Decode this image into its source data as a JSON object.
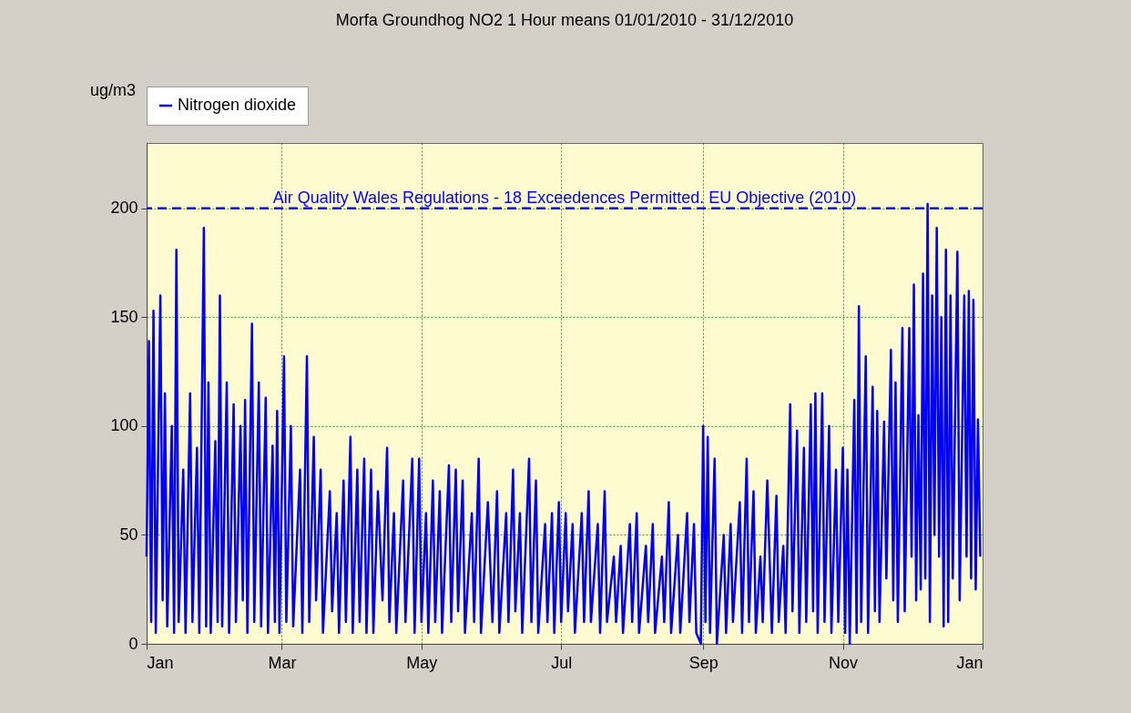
{
  "chart_data": {
    "type": "line",
    "title": "Morfa Groundhog NO2 1 Hour means     01/01/2010 - 31/12/2010",
    "ylabel": "ug/m3",
    "xlim": [
      "2010-01-01",
      "2011-01-01"
    ],
    "xticks": [
      {
        "value": "2010-01-01",
        "label": "Jan"
      },
      {
        "value": "2010-03-01",
        "label": "Mar"
      },
      {
        "value": "2010-05-01",
        "label": "May"
      },
      {
        "value": "2010-07-01",
        "label": "Jul"
      },
      {
        "value": "2010-09-01",
        "label": "Sep"
      },
      {
        "value": "2010-11-01",
        "label": "Nov"
      },
      {
        "value": "2011-01-01",
        "label": "Jan"
      }
    ],
    "ylim": [
      0,
      230
    ],
    "yticks": [
      0,
      50,
      100,
      150,
      200
    ],
    "grid": true,
    "legend": "top left",
    "line_style": "solid",
    "x": [
      "2010-01-01",
      "2010-01-02",
      "2010-01-03",
      "2010-01-04",
      "2010-01-05",
      "2010-01-07",
      "2010-01-08",
      "2010-01-09",
      "2010-01-10",
      "2010-01-12",
      "2010-01-13",
      "2010-01-14",
      "2010-01-15",
      "2010-01-17",
      "2010-01-18",
      "2010-01-20",
      "2010-01-21",
      "2010-01-23",
      "2010-01-24",
      "2010-01-26",
      "2010-01-27",
      "2010-01-28",
      "2010-01-29",
      "2010-01-31",
      "2010-02-01",
      "2010-02-02",
      "2010-02-03",
      "2010-02-05",
      "2010-02-06",
      "2010-02-08",
      "2010-02-09",
      "2010-02-11",
      "2010-02-12",
      "2010-02-13",
      "2010-02-14",
      "2010-02-16",
      "2010-02-17",
      "2010-02-19",
      "2010-02-20",
      "2010-02-22",
      "2010-02-23",
      "2010-02-25",
      "2010-02-26",
      "2010-02-27",
      "2010-02-28",
      "2010-03-02",
      "2010-03-03",
      "2010-03-05",
      "2010-03-06",
      "2010-03-09",
      "2010-03-10",
      "2010-03-12",
      "2010-03-13",
      "2010-03-15",
      "2010-03-16",
      "2010-03-18",
      "2010-03-19",
      "2010-03-22",
      "2010-03-23",
      "2010-03-25",
      "2010-03-26",
      "2010-03-28",
      "2010-03-29",
      "2010-03-31",
      "2010-04-01",
      "2010-04-03",
      "2010-04-04",
      "2010-04-06",
      "2010-04-07",
      "2010-04-09",
      "2010-04-10",
      "2010-04-12",
      "2010-04-14",
      "2010-04-16",
      "2010-04-17",
      "2010-04-19",
      "2010-04-20",
      "2010-04-23",
      "2010-04-24",
      "2010-04-27",
      "2010-04-28",
      "2010-04-30",
      "2010-05-01",
      "2010-05-03",
      "2010-05-04",
      "2010-05-06",
      "2010-05-07",
      "2010-05-09",
      "2010-05-10",
      "2010-05-13",
      "2010-05-14",
      "2010-05-16",
      "2010-05-17",
      "2010-05-19",
      "2010-05-20",
      "2010-05-23",
      "2010-05-24",
      "2010-05-26",
      "2010-05-27",
      "2010-05-30",
      "2010-06-01",
      "2010-06-03",
      "2010-06-04",
      "2010-06-07",
      "2010-06-08",
      "2010-06-10",
      "2010-06-11",
      "2010-06-13",
      "2010-06-14",
      "2010-06-17",
      "2010-06-18",
      "2010-06-20",
      "2010-06-21",
      "2010-06-24",
      "2010-06-25",
      "2010-06-27",
      "2010-06-28",
      "2010-06-30",
      "2010-07-01",
      "2010-07-03",
      "2010-07-04",
      "2010-07-06",
      "2010-07-07",
      "2010-07-10",
      "2010-07-11",
      "2010-07-13",
      "2010-07-14",
      "2010-07-17",
      "2010-07-18",
      "2010-07-20",
      "2010-07-21",
      "2010-07-24",
      "2010-07-25",
      "2010-07-27",
      "2010-07-28",
      "2010-07-31",
      "2010-08-01",
      "2010-08-03",
      "2010-08-04",
      "2010-08-07",
      "2010-08-08",
      "2010-08-10",
      "2010-08-11",
      "2010-08-14",
      "2010-08-15",
      "2010-08-17",
      "2010-08-18",
      "2010-08-21",
      "2010-08-22",
      "2010-08-25",
      "2010-08-26",
      "2010-08-28",
      "2010-08-29",
      "2010-08-31",
      "2010-09-01",
      "2010-09-02",
      "2010-09-03",
      "2010-09-04",
      "2010-09-06",
      "2010-09-07",
      "2010-09-10",
      "2010-09-11",
      "2010-09-13",
      "2010-09-14",
      "2010-09-17",
      "2010-09-18",
      "2010-09-20",
      "2010-09-21",
      "2010-09-23",
      "2010-09-24",
      "2010-09-26",
      "2010-09-27",
      "2010-09-29",
      "2010-10-01",
      "2010-10-03",
      "2010-10-04",
      "2010-10-06",
      "2010-10-07",
      "2010-10-09",
      "2010-10-10",
      "2010-10-12",
      "2010-10-13",
      "2010-10-15",
      "2010-10-16",
      "2010-10-18",
      "2010-10-19",
      "2010-10-20",
      "2010-10-21",
      "2010-10-23",
      "2010-10-24",
      "2010-10-26",
      "2010-10-27",
      "2010-10-29",
      "2010-10-30",
      "2010-11-01",
      "2010-11-02",
      "2010-11-03",
      "2010-11-04",
      "2010-11-06",
      "2010-11-07",
      "2010-11-08",
      "2010-11-09",
      "2010-11-11",
      "2010-11-12",
      "2010-11-14",
      "2010-11-15",
      "2010-11-16",
      "2010-11-17",
      "2010-11-19",
      "2010-11-20",
      "2010-11-22",
      "2010-11-23",
      "2010-11-24",
      "2010-11-25",
      "2010-11-27",
      "2010-11-28",
      "2010-11-30",
      "2010-12-01",
      "2010-12-02",
      "2010-12-03",
      "2010-12-04",
      "2010-12-05",
      "2010-12-06",
      "2010-12-07",
      "2010-12-08",
      "2010-12-09",
      "2010-12-10",
      "2010-12-11",
      "2010-12-12",
      "2010-12-13",
      "2010-12-14",
      "2010-12-15",
      "2010-12-16",
      "2010-12-17",
      "2010-12-18",
      "2010-12-19",
      "2010-12-21",
      "2010-12-22",
      "2010-12-24",
      "2010-12-25",
      "2010-12-26",
      "2010-12-27",
      "2010-12-28",
      "2010-12-29",
      "2010-12-30",
      "2010-12-31"
    ],
    "series": [
      {
        "name": "Nitrogen dioxide",
        "color": "#0000ff",
        "values": [
          40,
          139,
          10,
          153,
          5,
          160,
          20,
          115,
          8,
          100,
          5,
          181,
          10,
          80,
          5,
          115,
          10,
          90,
          5,
          191,
          8,
          120,
          5,
          93,
          10,
          160,
          8,
          120,
          5,
          110,
          10,
          100,
          20,
          112,
          5,
          147,
          10,
          120,
          8,
          113,
          5,
          91,
          10,
          107,
          5,
          132,
          10,
          100,
          8,
          80,
          5,
          132,
          10,
          95,
          20,
          80,
          5,
          70,
          15,
          60,
          5,
          75,
          10,
          95,
          5,
          80,
          10,
          85,
          5,
          80,
          5,
          70,
          20,
          90,
          10,
          60,
          5,
          75,
          10,
          85,
          5,
          85,
          10,
          60,
          5,
          75,
          10,
          70,
          5,
          82,
          10,
          80,
          15,
          75,
          5,
          60,
          10,
          85,
          5,
          65,
          10,
          70,
          5,
          60,
          10,
          80,
          15,
          60,
          5,
          85,
          10,
          75,
          5,
          55,
          10,
          60,
          5,
          65,
          10,
          60,
          15,
          55,
          5,
          60,
          10,
          70,
          10,
          55,
          5,
          70,
          10,
          40,
          10,
          45,
          5,
          55,
          10,
          60,
          5,
          45,
          10,
          55,
          5,
          40,
          10,
          65,
          5,
          50,
          5,
          60,
          10,
          55,
          5,
          0,
          100,
          10,
          95,
          5,
          85,
          0,
          50,
          5,
          55,
          10,
          65,
          5,
          85,
          10,
          70,
          5,
          40,
          10,
          75,
          5,
          68,
          10,
          45,
          5,
          110,
          15,
          98,
          5,
          90,
          10,
          110,
          15,
          115,
          5,
          115,
          10,
          100,
          5,
          80,
          10,
          90,
          5,
          80,
          0,
          112,
          5,
          155,
          10,
          132,
          5,
          118,
          15,
          107,
          10,
          102,
          30,
          135,
          20,
          120,
          10,
          145,
          15,
          145,
          40,
          165,
          20,
          105,
          25,
          170,
          30,
          202,
          10,
          160,
          50,
          191,
          40,
          150,
          8,
          181,
          10,
          160,
          30,
          180,
          20,
          160,
          40,
          162,
          30,
          158,
          25,
          103,
          40
        ]
      }
    ],
    "ref_lines": [
      {
        "axis": "y",
        "value": 200,
        "label": "Air Quality Wales Regulations - 18 Exceedences Permitted. EU Objective (2010)",
        "color": "#0000ff",
        "line_style": "dashed"
      }
    ]
  }
}
